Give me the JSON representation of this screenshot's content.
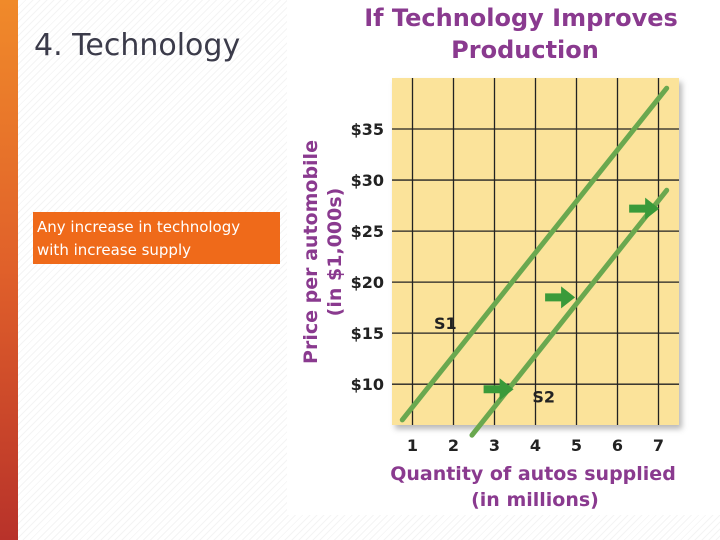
{
  "slide": {
    "title": "4.  Technology",
    "note": "Any increase in technology with increase supply"
  },
  "chart_data": {
    "type": "line",
    "title": "If Technology Improves Production",
    "xlabel": "Quantity of autos supplied (in millions)",
    "ylabel": "Price per automobile (in $1,000s)",
    "x_ticks": [
      "1",
      "2",
      "3",
      "4",
      "5",
      "6",
      "7"
    ],
    "y_ticks": [
      "$10",
      "$15",
      "$20",
      "$25",
      "$30",
      "$35"
    ],
    "xlim": [
      0.5,
      7.5
    ],
    "ylim": [
      6,
      40
    ],
    "grid": true,
    "series": [
      {
        "name": "S1",
        "points": [
          [
            0.75,
            6.5
          ],
          [
            7.2,
            39
          ]
        ]
      },
      {
        "name": "S2",
        "points": [
          [
            2.45,
            5
          ],
          [
            7.2,
            29
          ]
        ]
      }
    ],
    "series_labels": [
      {
        "text": "S1",
        "x": 1.8,
        "y": 16
      },
      {
        "text": "S2",
        "x": 4.2,
        "y": 8.8
      }
    ],
    "arrows": [
      {
        "x": 3.1,
        "y": 9.5
      },
      {
        "x": 4.6,
        "y": 18.5
      },
      {
        "x": 6.65,
        "y": 27.2
      }
    ],
    "colors": {
      "plot_bg": "#fbe39a",
      "grid": "#222222",
      "line": "#6aa84f",
      "arrow": "#3a9a3a",
      "title": "#8a3a8f"
    }
  }
}
